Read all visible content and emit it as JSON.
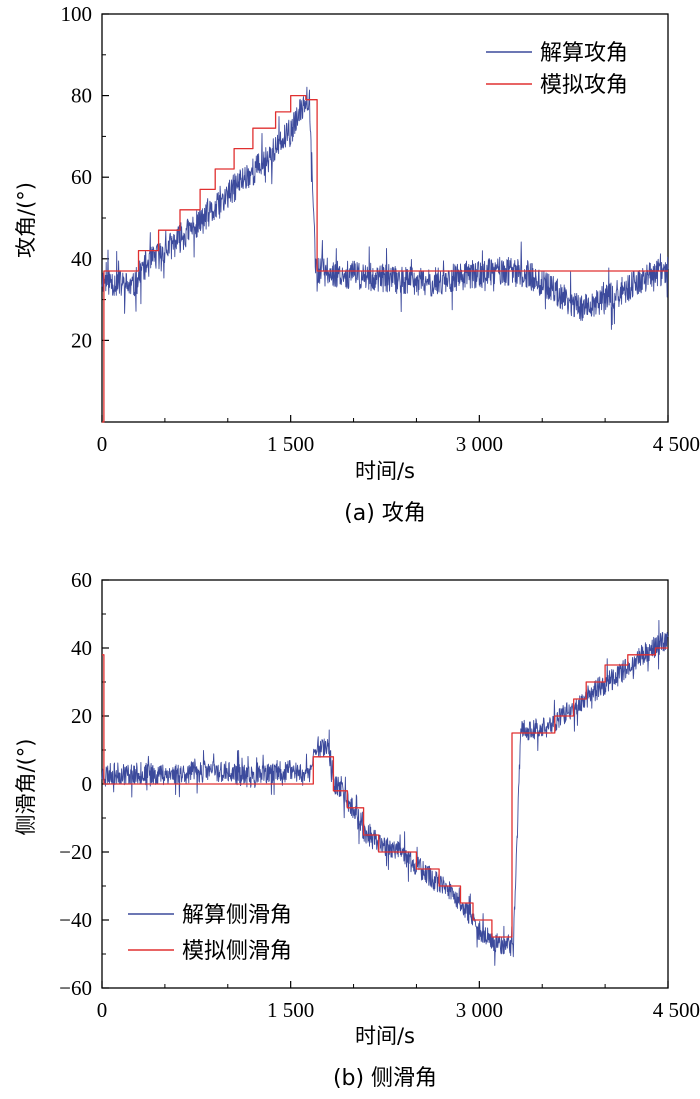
{
  "chart_data": [
    {
      "type": "line",
      "caption": "(a) 攻角",
      "xlabel": "时间/s",
      "ylabel": "攻角/(°)",
      "xlim": [
        0,
        4500
      ],
      "ylim": [
        0,
        100
      ],
      "xticks": [
        0,
        1500,
        3000,
        4500
      ],
      "xtick_labels": [
        "0",
        "1 500",
        "3 000",
        "4 500"
      ],
      "yticks": [
        20,
        40,
        60,
        80,
        100
      ],
      "ytick_labels": [
        "20",
        "40",
        "60",
        "80",
        "100"
      ],
      "legend_position": "top-right",
      "series": [
        {
          "name": "解算攻角",
          "color": "#3c4a9c",
          "style": "noisy",
          "noise_amplitude": 3.5,
          "seed": 11,
          "x": [
            0,
            250,
            330,
            500,
            700,
            900,
            1100,
            1300,
            1500,
            1580,
            1620,
            1650,
            1700,
            2000,
            2300,
            2600,
            2900,
            3200,
            3400,
            3600,
            3800,
            4000,
            4200,
            4350,
            4500
          ],
          "y": [
            35,
            33,
            38,
            42,
            47,
            52,
            59,
            64,
            71,
            76,
            80,
            79,
            37,
            36,
            35,
            34,
            36,
            37,
            36,
            32,
            28,
            30,
            33,
            36,
            37
          ]
        },
        {
          "name": "模拟攻角",
          "color": "#e03030",
          "style": "step",
          "x": [
            0,
            15,
            15,
            290,
            290,
            450,
            450,
            620,
            620,
            780,
            780,
            900,
            900,
            1050,
            1050,
            1200,
            1200,
            1380,
            1380,
            1500,
            1500,
            1620,
            1620,
            1710,
            1710,
            4500
          ],
          "y": [
            0,
            0,
            37,
            37,
            42,
            42,
            47,
            47,
            52,
            52,
            57,
            57,
            62,
            62,
            67,
            67,
            72,
            72,
            76,
            76,
            80,
            80,
            79,
            79,
            37,
            37
          ]
        }
      ]
    },
    {
      "type": "line",
      "caption": "(b) 侧滑角",
      "xlabel": "时间/s",
      "ylabel": "侧滑角/(°)",
      "xlim": [
        0,
        4500
      ],
      "ylim": [
        -60,
        60
      ],
      "xticks": [
        0,
        1500,
        3000,
        4500
      ],
      "xtick_labels": [
        "0",
        "1 500",
        "3 000",
        "4 500"
      ],
      "yticks": [
        -60,
        -40,
        -20,
        0,
        20,
        40,
        60
      ],
      "ytick_labels": [
        "−60",
        "−40",
        "−20",
        "0",
        "20",
        "40",
        "60"
      ],
      "legend_position": "bottom-left",
      "series": [
        {
          "name": "解算侧滑角",
          "color": "#3c4a9c",
          "style": "noisy",
          "noise_amplitude": 3.2,
          "seed": 23,
          "x": [
            0,
            300,
            600,
            900,
            1200,
            1500,
            1650,
            1700,
            1800,
            1850,
            1900,
            2000,
            2100,
            2200,
            2400,
            2600,
            2800,
            3000,
            3150,
            3200,
            3270,
            3330,
            3500,
            3700,
            3900,
            4100,
            4300,
            4500
          ],
          "y": [
            3,
            3,
            3,
            4,
            2,
            4,
            3,
            11,
            11,
            0,
            -2,
            -7,
            -15,
            -17,
            -21,
            -27,
            -33,
            -43,
            -47,
            -47,
            -48,
            16,
            16,
            21,
            27,
            32,
            38,
            43
          ]
        },
        {
          "name": "模拟侧滑角",
          "color": "#e03030",
          "style": "step",
          "x": [
            0,
            15,
            15,
            1680,
            1680,
            1840,
            1840,
            1950,
            1950,
            2080,
            2080,
            2200,
            2200,
            2500,
            2500,
            2680,
            2680,
            2850,
            2850,
            2950,
            2950,
            3100,
            3100,
            3260,
            3260,
            3320,
            3320,
            3600,
            3600,
            3750,
            3750,
            3850,
            3850,
            4000,
            4000,
            4180,
            4180,
            4400,
            4400,
            4500
          ],
          "y": [
            38,
            38,
            0,
            0,
            8,
            8,
            -2,
            -2,
            -7,
            -7,
            -15,
            -15,
            -20,
            -20,
            -25,
            -25,
            -30,
            -30,
            -35,
            -35,
            -40,
            -40,
            -45,
            -45,
            15,
            15,
            15,
            15,
            20,
            20,
            25,
            25,
            30,
            30,
            35,
            35,
            38,
            38,
            40,
            40
          ]
        }
      ]
    }
  ]
}
